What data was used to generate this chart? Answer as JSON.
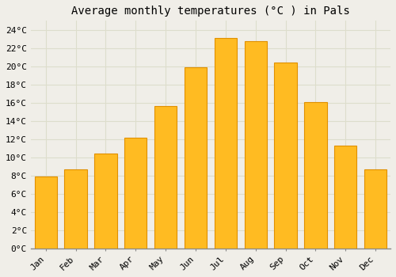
{
  "title": "Average monthly temperatures (°C ) in Pals",
  "months": [
    "Jan",
    "Feb",
    "Mar",
    "Apr",
    "May",
    "Jun",
    "Jul",
    "Aug",
    "Sep",
    "Oct",
    "Nov",
    "Dec"
  ],
  "temperatures": [
    7.9,
    8.7,
    10.4,
    12.2,
    15.6,
    19.9,
    23.1,
    22.8,
    20.4,
    16.1,
    11.3,
    8.7
  ],
  "bar_color": "#FFBB22",
  "bar_edge_color": "#E09000",
  "background_color": "#F0EEE8",
  "plot_bg_color": "#F0EEE8",
  "grid_color": "#DDDDCC",
  "title_fontsize": 10,
  "tick_label_fontsize": 8,
  "ylim": [
    0,
    25
  ],
  "ytick_values": [
    0,
    2,
    4,
    6,
    8,
    10,
    12,
    14,
    16,
    18,
    20,
    22,
    24
  ],
  "bar_width": 0.75
}
